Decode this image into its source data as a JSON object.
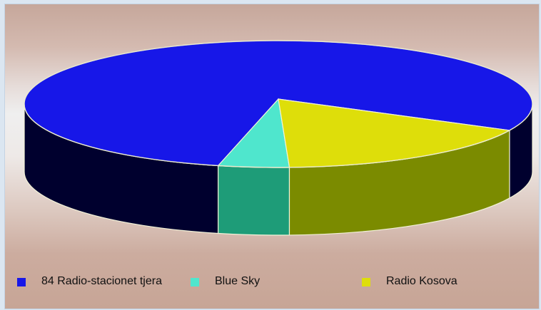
{
  "chart_data": {
    "type": "pie",
    "title": "",
    "slices": [
      {
        "label": "84 Radio-stacionet tjera",
        "value": 78,
        "color": "#1717e8",
        "side_color": "#00002e"
      },
      {
        "label": "Blue Sky",
        "value": 4.5,
        "color": "#4fe6cd",
        "side_color": "#1e9c78"
      },
      {
        "label": "Radio Kosova",
        "value": 17.5,
        "color": "#dede0a",
        "side_color": "#7b8b00"
      }
    ],
    "legend_position": "bottom"
  }
}
